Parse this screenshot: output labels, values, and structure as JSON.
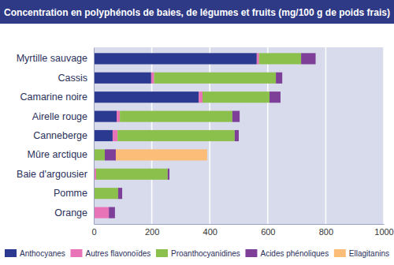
{
  "chart_data": {
    "type": "bar",
    "orientation": "horizontal",
    "stacked": true,
    "grid": true,
    "legend": "bottom",
    "title": "Concentration en polyphénols de baies, de légumes et fruits (mg/100 g de poids frais)",
    "categories": [
      "Myrtille sauvage",
      "Cassis",
      "Camarine noire",
      "Airelle rouge",
      "Canneberge",
      "Mûre arctique",
      "Baie d'argousier",
      "Pomme",
      "Orange"
    ],
    "series": [
      {
        "name": "Anthocyanes",
        "color": "#2b3990",
        "values": [
          562,
          198,
          362,
          79,
          65,
          0,
          0,
          0,
          0
        ]
      },
      {
        "name": "Autres flavonoïdes",
        "color": "#e873b7",
        "values": [
          8,
          10,
          13,
          11,
          17,
          0,
          8,
          0,
          52
        ]
      },
      {
        "name": "Proanthocyanidines",
        "color": "#8cc04c",
        "values": [
          145,
          420,
          231,
          388,
          404,
          38,
          247,
          84,
          0
        ]
      },
      {
        "name": "Acides phénoliques",
        "color": "#7d3f98",
        "values": [
          50,
          22,
          38,
          25,
          14,
          38,
          6,
          14,
          21
        ]
      },
      {
        "name": "Ellagitanins",
        "color": "#fbbd78",
        "values": [
          0,
          0,
          0,
          0,
          0,
          315,
          0,
          0,
          0
        ]
      }
    ],
    "xlim": [
      0,
      1000
    ],
    "xticks": [
      0,
      200,
      400,
      600,
      800,
      1000
    ]
  }
}
